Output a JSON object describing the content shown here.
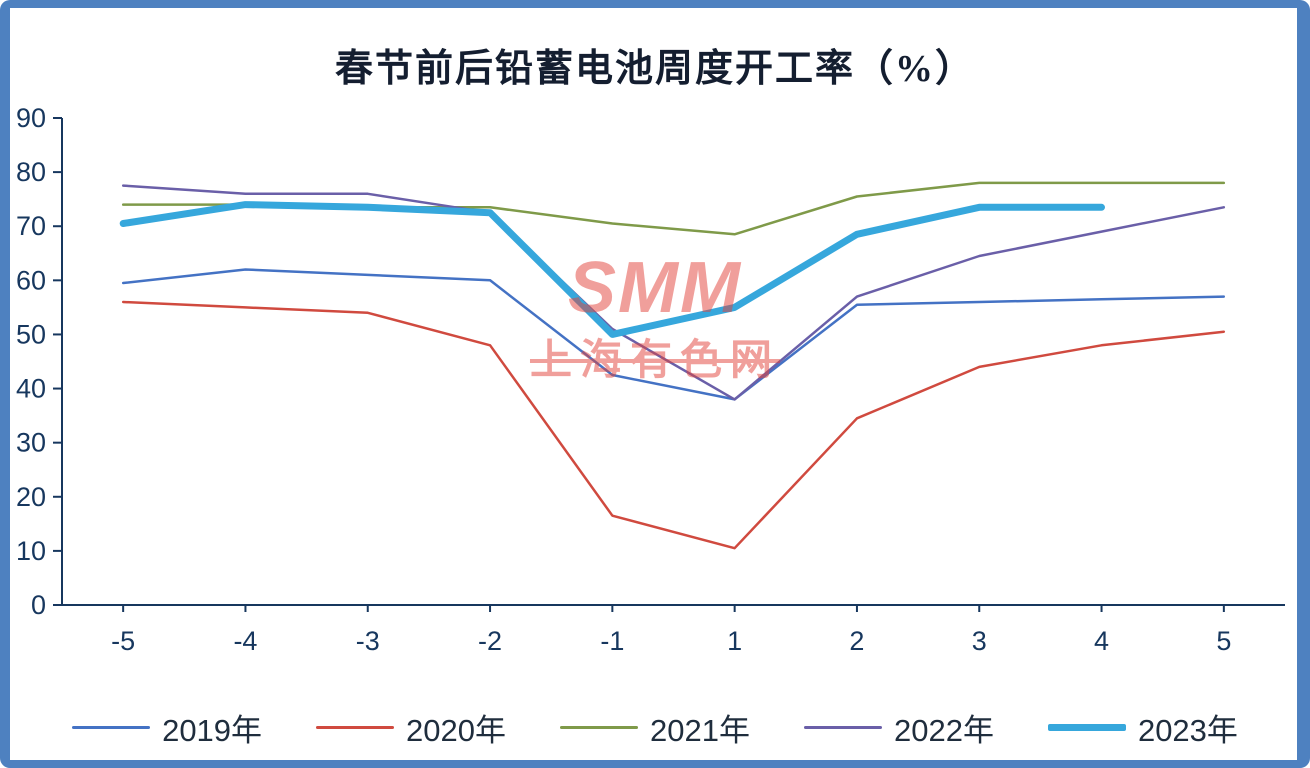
{
  "frame": {
    "border_color": "#4e81c0"
  },
  "watermark": {
    "line1": "SMM",
    "line2": "上海有色网",
    "color": "#e3423a"
  },
  "chart_data": {
    "type": "line",
    "title": "春节前后铅蓄电池周度开工率（%）",
    "xlabel": "",
    "ylabel": "",
    "x_labels": [
      "-5",
      "-4",
      "-3",
      "-2",
      "-1",
      "1",
      "2",
      "3",
      "4",
      "5"
    ],
    "y_ticks": [
      0,
      10,
      20,
      30,
      40,
      50,
      60,
      70,
      80,
      90
    ],
    "ylim": [
      0,
      90
    ],
    "grid": false,
    "legend_position": "bottom",
    "axis_color": "#17375E",
    "series": [
      {
        "name": "2019年",
        "color": "#4472C4",
        "width": 2.5,
        "values": [
          59.5,
          62,
          61,
          60,
          42.5,
          38,
          55.5,
          56,
          56.5,
          57
        ]
      },
      {
        "name": "2020年",
        "color": "#D04A3F",
        "width": 2.5,
        "values": [
          56,
          55,
          54,
          48,
          16.5,
          10.5,
          34.5,
          44,
          48,
          50.5
        ]
      },
      {
        "name": "2021年",
        "color": "#7F9A49",
        "width": 2.5,
        "values": [
          74,
          74,
          73.5,
          73.5,
          70.5,
          68.5,
          75.5,
          78,
          78,
          78
        ]
      },
      {
        "name": "2022年",
        "color": "#6A5FA8",
        "width": 2.5,
        "values": [
          77.5,
          76,
          76,
          72.5,
          51,
          38,
          57,
          64.5,
          69,
          73.5
        ]
      },
      {
        "name": "2023年",
        "color": "#36A7DC",
        "width": 7,
        "values": [
          70.5,
          74,
          73.5,
          72.5,
          50,
          55,
          68.5,
          73.5,
          73.5,
          null
        ]
      }
    ]
  }
}
